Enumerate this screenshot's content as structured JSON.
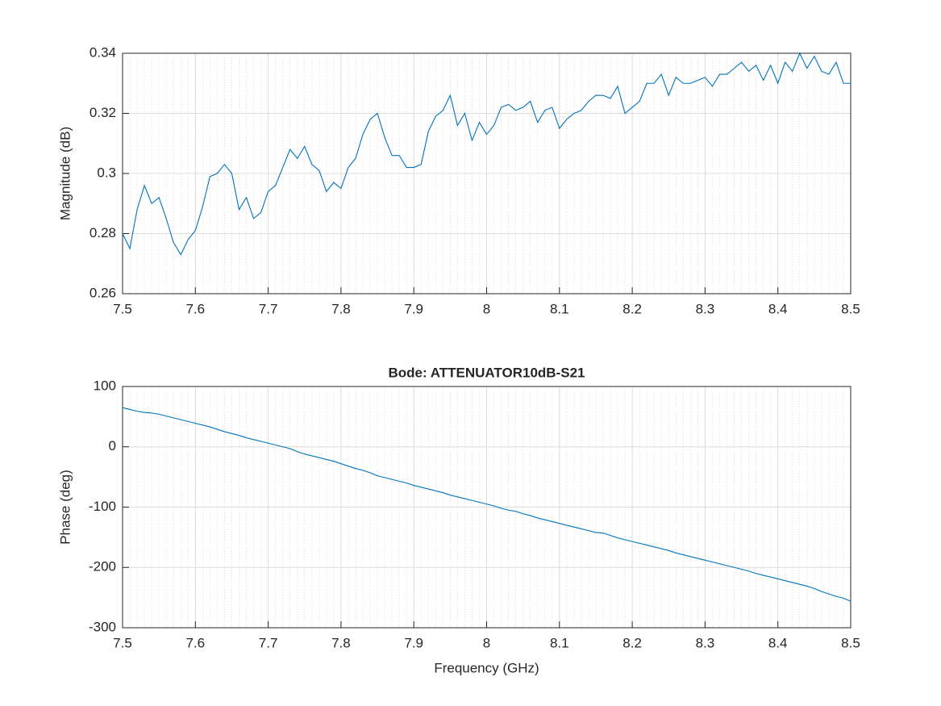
{
  "chart_data": [
    {
      "type": "line",
      "ylabel": "Magnitude (dB)",
      "x": [
        7.5,
        7.51,
        7.52,
        7.53,
        7.54,
        7.55,
        7.56,
        7.57,
        7.58,
        7.59,
        7.6,
        7.61,
        7.62,
        7.63,
        7.64,
        7.65,
        7.66,
        7.67,
        7.68,
        7.69,
        7.7,
        7.71,
        7.72,
        7.73,
        7.74,
        7.75,
        7.76,
        7.77,
        7.78,
        7.79,
        7.8,
        7.81,
        7.82,
        7.83,
        7.84,
        7.85,
        7.86,
        7.87,
        7.88,
        7.89,
        7.9,
        7.91,
        7.92,
        7.93,
        7.94,
        7.95,
        7.96,
        7.97,
        7.98,
        7.99,
        8,
        8.01,
        8.02,
        8.03,
        8.04,
        8.05,
        8.06,
        8.07,
        8.08,
        8.09,
        8.1,
        8.11,
        8.12,
        8.13,
        8.14,
        8.15,
        8.16,
        8.17,
        8.18,
        8.19,
        8.2,
        8.21,
        8.22,
        8.23,
        8.24,
        8.25,
        8.26,
        8.27,
        8.28,
        8.29,
        8.3,
        8.31,
        8.32,
        8.33,
        8.34,
        8.35,
        8.36,
        8.37,
        8.38,
        8.39,
        8.4,
        8.41,
        8.42,
        8.43,
        8.44,
        8.45,
        8.46,
        8.47,
        8.48,
        8.49,
        8.5
      ],
      "series": [
        {
          "color": "#0072bd",
          "values": [
            0.28,
            0.275,
            0.288,
            0.296,
            0.29,
            0.292,
            0.285,
            0.277,
            0.273,
            0.278,
            0.281,
            0.289,
            0.299,
            0.3,
            0.303,
            0.3,
            0.288,
            0.292,
            0.285,
            0.287,
            0.294,
            0.296,
            0.302,
            0.308,
            0.305,
            0.309,
            0.303,
            0.301,
            0.294,
            0.297,
            0.295,
            0.302,
            0.305,
            0.313,
            0.318,
            0.32,
            0.312,
            0.306,
            0.306,
            0.302,
            0.302,
            0.303,
            0.314,
            0.319,
            0.321,
            0.326,
            0.316,
            0.32,
            0.311,
            0.317,
            0.313,
            0.316,
            0.322,
            0.323,
            0.321,
            0.322,
            0.324,
            0.317,
            0.321,
            0.322,
            0.315,
            0.318,
            0.32,
            0.321,
            0.324,
            0.326,
            0.326,
            0.325,
            0.329,
            0.32,
            0.322,
            0.324,
            0.33,
            0.33,
            0.333,
            0.326,
            0.332,
            0.33,
            0.33,
            0.331,
            0.332,
            0.329,
            0.333,
            0.333,
            0.335,
            0.337,
            0.334,
            0.336,
            0.331,
            0.336,
            0.33,
            0.337,
            0.334,
            0.34,
            0.335,
            0.339,
            0.334,
            0.333,
            0.337,
            0.33,
            0.33
          ]
        }
      ],
      "xlim": [
        7.5,
        8.5
      ],
      "xticks": [
        7.5,
        7.6,
        7.7,
        7.8,
        7.9,
        8,
        8.1,
        8.2,
        8.3,
        8.4,
        8.5
      ],
      "ylim": [
        0.26,
        0.34
      ],
      "yticks": [
        0.26,
        0.28,
        0.3,
        0.32,
        0.34
      ],
      "grid": true,
      "minor_grid": true
    },
    {
      "type": "line",
      "title": "Bode: ATTENUATOR10dB-S21",
      "xlabel": "Frequency (GHz)",
      "ylabel": "Phase (deg)",
      "x": [
        7.5,
        7.51,
        7.52,
        7.53,
        7.54,
        7.55,
        7.56,
        7.57,
        7.58,
        7.59,
        7.6,
        7.61,
        7.62,
        7.63,
        7.64,
        7.65,
        7.66,
        7.67,
        7.68,
        7.69,
        7.7,
        7.71,
        7.72,
        7.73,
        7.74,
        7.75,
        7.76,
        7.77,
        7.78,
        7.79,
        7.8,
        7.81,
        7.82,
        7.83,
        7.84,
        7.85,
        7.86,
        7.87,
        7.88,
        7.89,
        7.9,
        7.91,
        7.92,
        7.93,
        7.94,
        7.95,
        7.96,
        7.97,
        7.98,
        7.99,
        8,
        8.01,
        8.02,
        8.03,
        8.04,
        8.05,
        8.06,
        8.07,
        8.08,
        8.09,
        8.1,
        8.11,
        8.12,
        8.13,
        8.14,
        8.15,
        8.16,
        8.17,
        8.18,
        8.19,
        8.2,
        8.21,
        8.22,
        8.23,
        8.24,
        8.25,
        8.26,
        8.27,
        8.28,
        8.29,
        8.3,
        8.31,
        8.32,
        8.33,
        8.34,
        8.35,
        8.36,
        8.37,
        8.38,
        8.39,
        8.4,
        8.41,
        8.42,
        8.43,
        8.44,
        8.45,
        8.46,
        8.47,
        8.48,
        8.49,
        8.5
      ],
      "series": [
        {
          "color": "#0072bd",
          "values": [
            65,
            62,
            59,
            57,
            56,
            54,
            51,
            48,
            45,
            42,
            39,
            36,
            33,
            29,
            25,
            22,
            19,
            15,
            12,
            9,
            6,
            3,
            0,
            -3,
            -8,
            -12,
            -15,
            -18,
            -21,
            -24,
            -28,
            -32,
            -36,
            -39,
            -43,
            -48,
            -51,
            -54,
            -57,
            -60,
            -64,
            -67,
            -70,
            -73,
            -76,
            -80,
            -83,
            -86,
            -89,
            -92,
            -95,
            -98,
            -102,
            -105,
            -107,
            -111,
            -114,
            -118,
            -121,
            -124,
            -127,
            -130,
            -133,
            -136,
            -139,
            -142,
            -143,
            -147,
            -151,
            -154,
            -157,
            -160,
            -163,
            -166,
            -169,
            -172,
            -176,
            -179,
            -182,
            -185,
            -188,
            -191,
            -194,
            -197,
            -200,
            -203,
            -206,
            -210,
            -213,
            -216,
            -219,
            -222,
            -225,
            -228,
            -231,
            -235,
            -240,
            -244,
            -248,
            -251,
            -256
          ]
        }
      ],
      "xlim": [
        7.5,
        8.5
      ],
      "xticks": [
        7.5,
        7.6,
        7.7,
        7.8,
        7.9,
        8,
        8.1,
        8.2,
        8.3,
        8.4,
        8.5
      ],
      "ylim": [
        -300,
        100
      ],
      "yticks": [
        -300,
        -200,
        -100,
        0,
        100
      ],
      "grid": true,
      "minor_grid": true
    }
  ]
}
